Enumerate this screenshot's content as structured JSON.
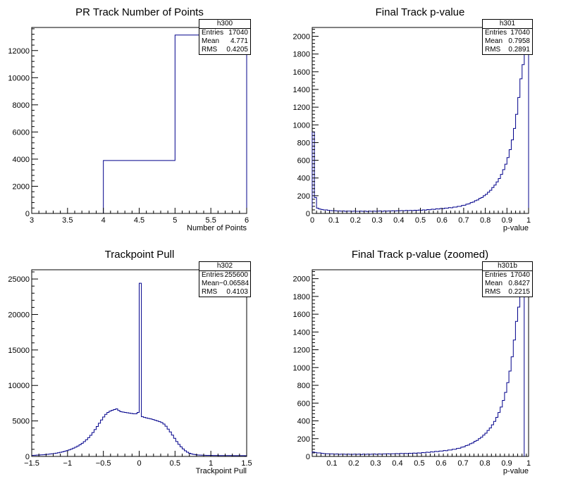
{
  "chart_data": [
    {
      "type": "histogram",
      "title": "PR Track Number of Points",
      "xlabel": "Number of Points",
      "ylabel": "",
      "xlim": [
        3,
        6
      ],
      "ylim": [
        0,
        13700
      ],
      "xticks": [
        "3",
        "3.5",
        "4",
        "4.5",
        "5",
        "5.5",
        "6"
      ],
      "yticks": [
        "0",
        "2000",
        "4000",
        "6000",
        "8000",
        "10000",
        "12000"
      ],
      "grid": false,
      "stats": {
        "name": "h300",
        "entries_label": "Entries",
        "entries": "17040",
        "mean_label": "Mean",
        "mean": "4.771",
        "rms_label": "RMS",
        "rms": "0.4205"
      },
      "bins": [
        {
          "lo": 4,
          "hi": 5,
          "value": 3900
        },
        {
          "lo": 5,
          "hi": 6,
          "value": 13140
        }
      ]
    },
    {
      "type": "histogram",
      "title": "Final Track p-value",
      "xlabel": "p-value",
      "ylabel": "",
      "xlim": [
        0,
        1
      ],
      "ylim": [
        0,
        2100
      ],
      "xticks": [
        "0",
        "0.1",
        "0.2",
        "0.3",
        "0.4",
        "0.5",
        "0.6",
        "0.7",
        "0.8",
        "0.9",
        "1"
      ],
      "yticks": [
        "0",
        "200",
        "400",
        "600",
        "800",
        "1000",
        "1200",
        "1400",
        "1600",
        "1800",
        "2000"
      ],
      "grid": false,
      "stats": {
        "name": "h301",
        "entries_label": "Entries",
        "entries": "17040",
        "mean_label": "Mean",
        "mean": "0.7958",
        "rms_label": "RMS",
        "rms": "0.2891"
      },
      "bin_width": 0.01,
      "values": [
        920,
        180,
        60,
        50,
        45,
        40,
        40,
        35,
        32,
        30,
        30,
        28,
        28,
        26,
        28,
        24,
        26,
        26,
        24,
        26,
        24,
        24,
        26,
        24,
        26,
        22,
        26,
        24,
        26,
        24,
        26,
        28,
        24,
        28,
        26,
        28,
        28,
        30,
        28,
        30,
        30,
        32,
        30,
        34,
        32,
        34,
        32,
        36,
        34,
        38,
        36,
        40,
        38,
        44,
        42,
        48,
        46,
        52,
        50,
        56,
        54,
        60,
        60,
        66,
        64,
        72,
        72,
        80,
        80,
        90,
        92,
        104,
        108,
        122,
        128,
        144,
        152,
        170,
        180,
        200,
        216,
        240,
        262,
        292,
        320,
        356,
        394,
        440,
        494,
        556,
        630,
        720,
        830,
        960,
        1120,
        1310,
        1520,
        1680,
        1800,
        2060
      ]
    },
    {
      "type": "histogram",
      "title": "Trackpoint Pull",
      "xlabel": "Trackpoint Pull",
      "ylabel": "",
      "xlim": [
        -1.5,
        1.5
      ],
      "ylim": [
        0,
        26300
      ],
      "xticks": [
        "−1.5",
        "−1",
        "−0.5",
        "0",
        "0.5",
        "1",
        "1.5"
      ],
      "yticks": [
        "0",
        "5000",
        "10000",
        "15000",
        "20000",
        "25000"
      ],
      "grid": false,
      "stats": {
        "name": "h302",
        "entries_label": "Entries",
        "entries": "255600",
        "mean_label": "Mean",
        "mean": "−0.06584",
        "rms_label": "RMS",
        "rms": "0.4103"
      },
      "bin_width": 0.03,
      "values": [
        150,
        160,
        180,
        200,
        220,
        240,
        270,
        300,
        330,
        370,
        410,
        460,
        520,
        580,
        650,
        730,
        820,
        920,
        1030,
        1160,
        1300,
        1460,
        1640,
        1850,
        2080,
        2340,
        2640,
        2980,
        3360,
        3780,
        4220,
        4680,
        5140,
        5560,
        5930,
        6200,
        6380,
        6500,
        6600,
        6700,
        6480,
        6300,
        6250,
        6200,
        6150,
        6100,
        6050,
        6000,
        6000,
        6200,
        24400,
        5600,
        5500,
        5420,
        5350,
        5280,
        5200,
        5100,
        5000,
        4900,
        4780,
        4560,
        4250,
        3850,
        3450,
        3000,
        2550,
        2100,
        1700,
        1350,
        1050,
        800,
        600,
        450,
        350,
        280,
        230,
        200,
        180,
        170,
        160,
        150,
        150,
        145,
        140,
        140,
        135,
        130,
        130,
        125,
        120,
        120,
        118,
        116,
        114,
        112,
        110,
        108,
        106,
        104
      ]
    },
    {
      "type": "histogram",
      "title": "Final Track p-value (zoomed)",
      "xlabel": "p-value",
      "ylabel": "",
      "xlim": [
        0.01,
        1
      ],
      "ylim": [
        0,
        2100
      ],
      "xticks": [
        "0.1",
        "0.2",
        "0.3",
        "0.4",
        "0.5",
        "0.6",
        "0.7",
        "0.8",
        "0.9",
        "1"
      ],
      "yticks": [
        "0",
        "200",
        "400",
        "600",
        "800",
        "1000",
        "1200",
        "1400",
        "1600",
        "1800",
        "2000"
      ],
      "grid": false,
      "stats": {
        "name": "h301b",
        "entries_label": "Entries",
        "entries": "17040",
        "mean_label": "Mean",
        "mean": "0.8427",
        "rms_label": "RMS",
        "rms": "0.2215"
      },
      "bin_width": 0.01,
      "values": [
        50,
        45,
        40,
        40,
        35,
        32,
        30,
        30,
        28,
        28,
        26,
        28,
        24,
        26,
        26,
        24,
        26,
        24,
        24,
        26,
        24,
        26,
        22,
        26,
        24,
        26,
        24,
        26,
        28,
        24,
        28,
        26,
        28,
        28,
        30,
        28,
        30,
        30,
        32,
        30,
        34,
        32,
        34,
        32,
        36,
        34,
        38,
        36,
        40,
        38,
        44,
        42,
        48,
        46,
        52,
        50,
        56,
        54,
        60,
        60,
        66,
        64,
        72,
        72,
        80,
        80,
        90,
        92,
        104,
        108,
        122,
        128,
        144,
        152,
        170,
        180,
        200,
        216,
        240,
        262,
        292,
        320,
        356,
        394,
        440,
        494,
        556,
        630,
        720,
        830,
        960,
        1120,
        1310,
        1520,
        1680,
        1800,
        2060
      ]
    }
  ],
  "colors": {
    "line": "#00008b",
    "axis": "#000000"
  }
}
